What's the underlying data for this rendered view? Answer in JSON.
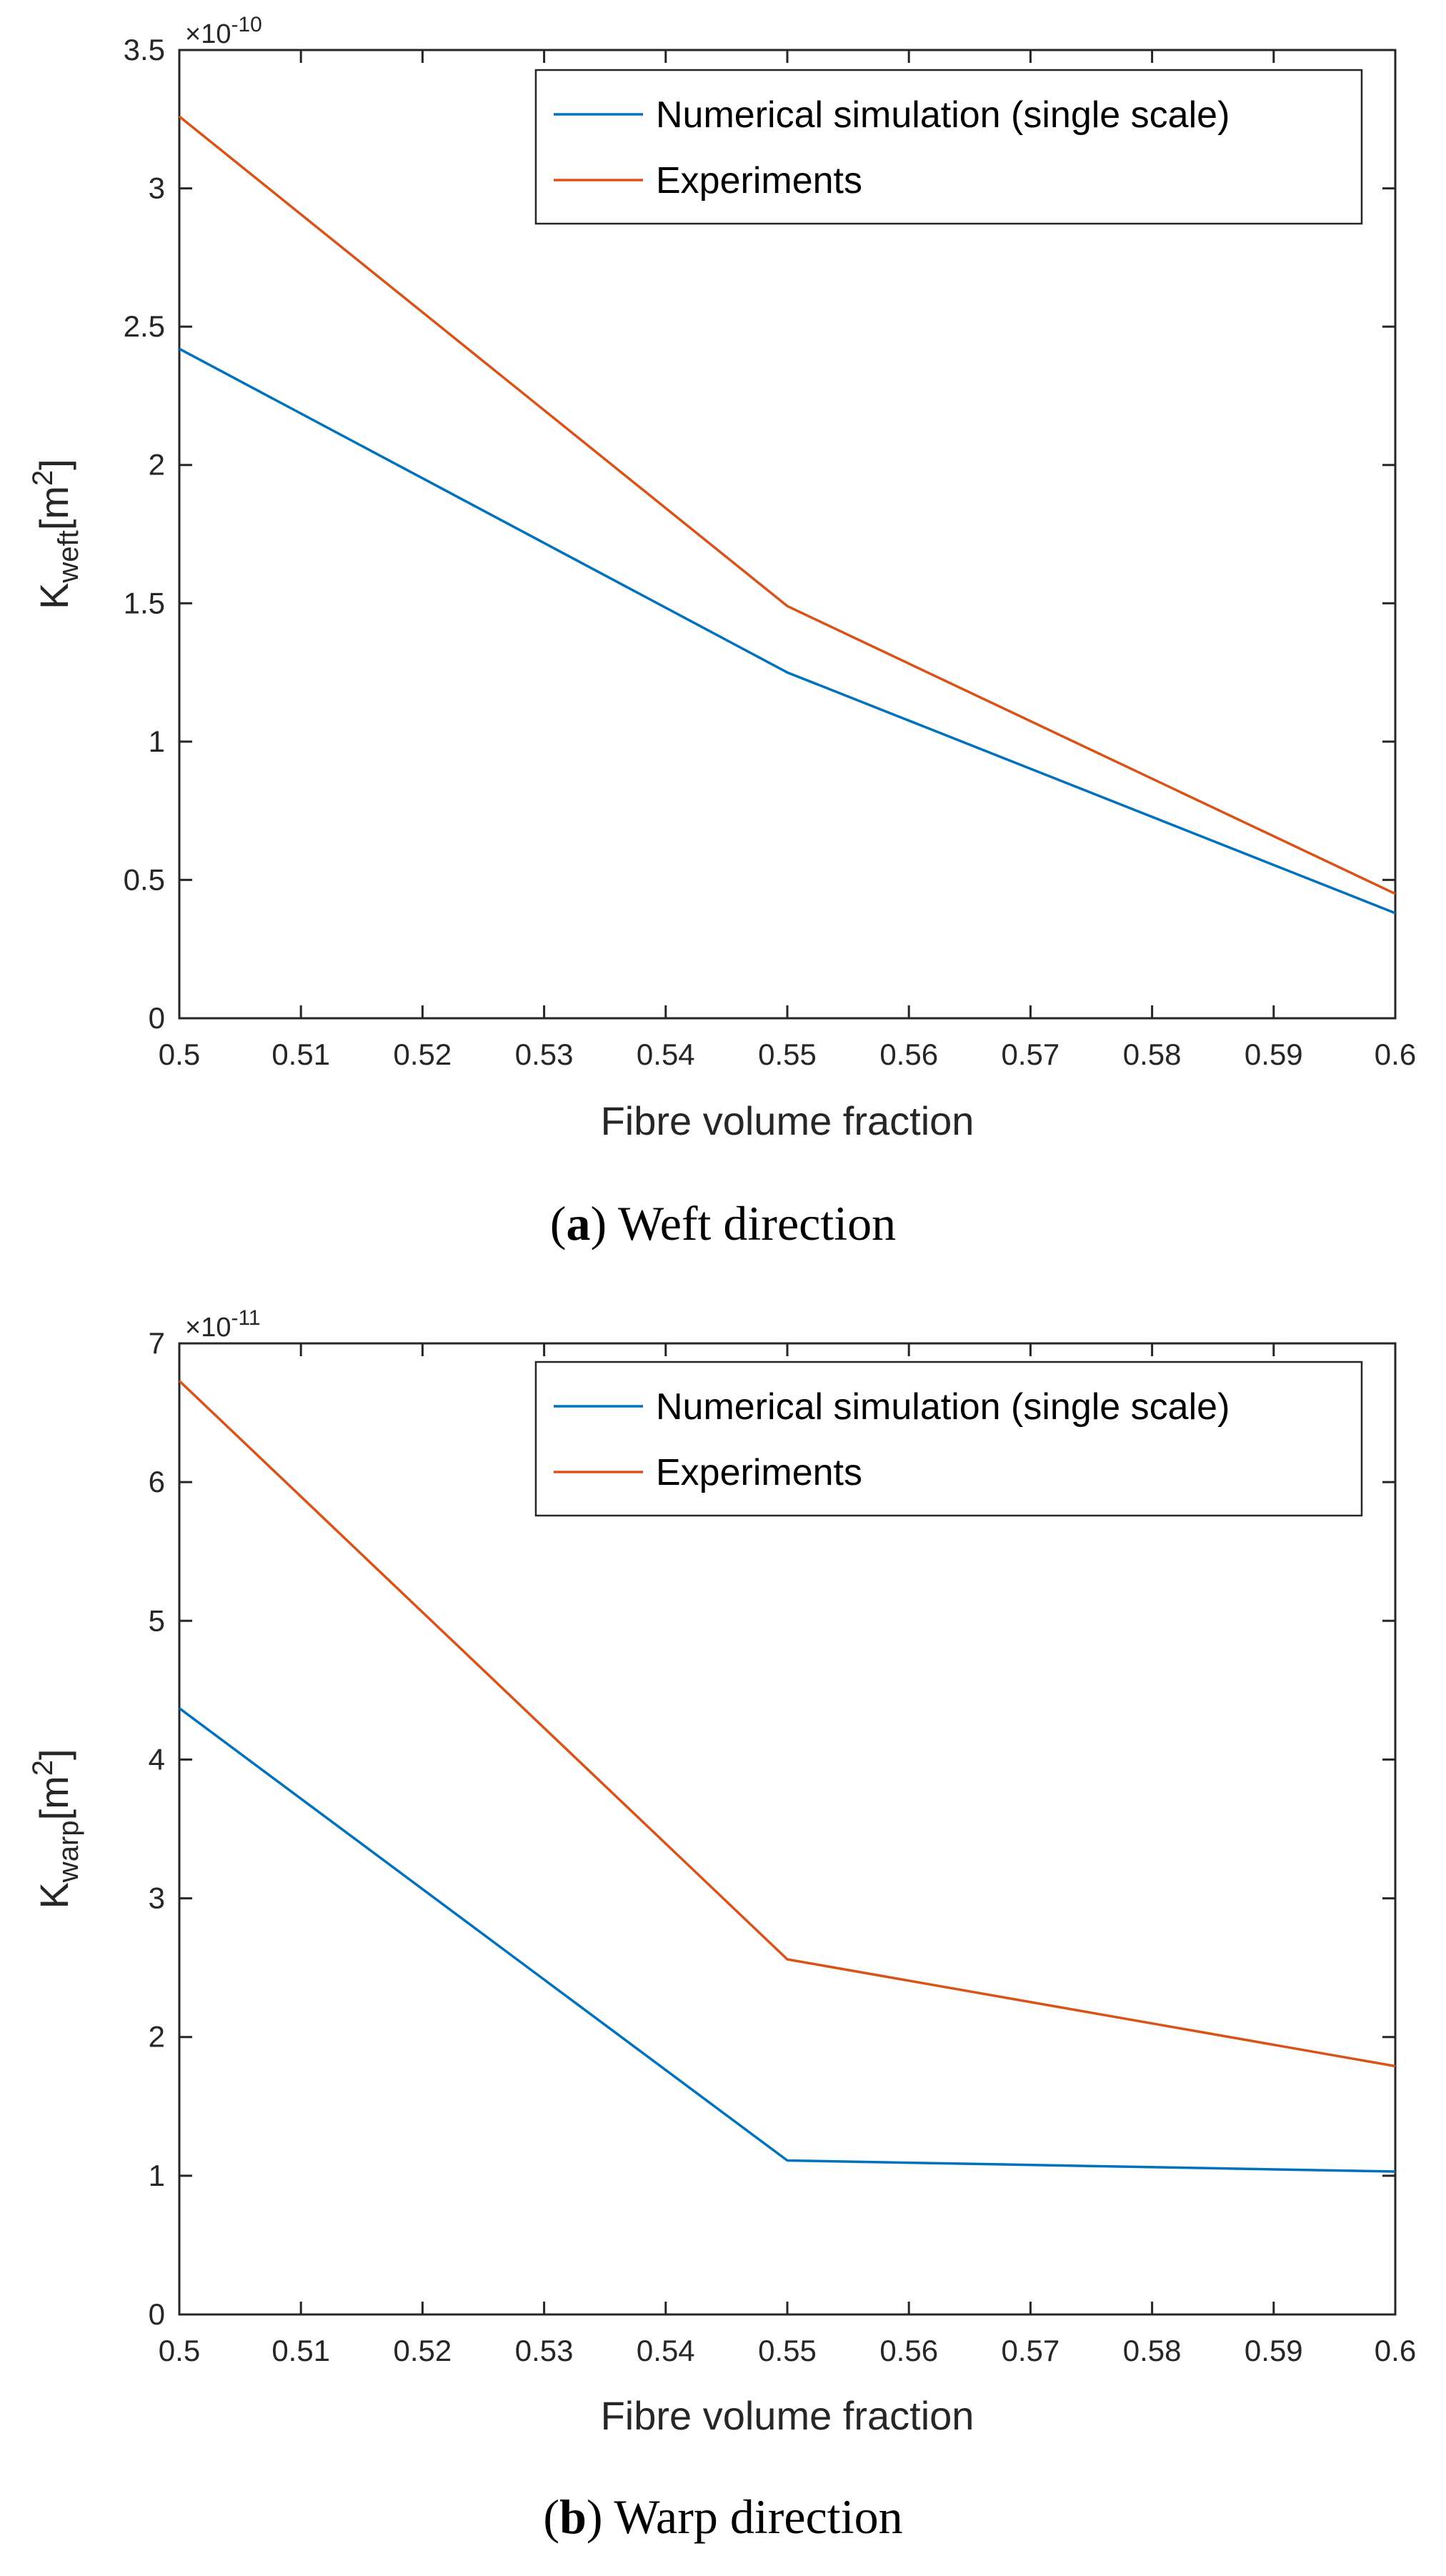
{
  "chart_data": [
    {
      "type": "line",
      "id": "a",
      "x": [
        0.5,
        0.55,
        0.6
      ],
      "series": [
        {
          "name": "Numerical simulation (single scale)",
          "color": "#0072BD",
          "values": [
            2.42,
            1.25,
            0.38
          ]
        },
        {
          "name": "Experiments",
          "color": "#D95319",
          "values": [
            3.26,
            1.49,
            0.45
          ]
        }
      ],
      "xlabel": "Fibre volume fraction",
      "ylabel_main": "K",
      "ylabel_sub": "weft",
      "ylabel_unit_prefix": "[m",
      "ylabel_unit_sup": "2",
      "ylabel_unit_suffix": "]",
      "exponent_base": "×10",
      "exponent_power": "-10",
      "xlim": [
        0.5,
        0.6
      ],
      "ylim": [
        0,
        3.5
      ],
      "xticks": [
        0.5,
        0.51,
        0.52,
        0.53,
        0.54,
        0.55,
        0.56,
        0.57,
        0.58,
        0.59,
        0.6
      ],
      "yticks": [
        0,
        0.5,
        1,
        1.5,
        2,
        2.5,
        3,
        3.5
      ],
      "legend": "top-right",
      "grid": false,
      "caption_bold": "a",
      "caption_text": " Weft direction"
    },
    {
      "type": "line",
      "id": "b",
      "x": [
        0.5,
        0.55,
        0.6
      ],
      "series": [
        {
          "name": "Numerical simulation (single scale)",
          "color": "#0072BD",
          "values": [
            4.37,
            1.11,
            1.03
          ]
        },
        {
          "name": "Experiments",
          "color": "#D95319",
          "values": [
            6.73,
            2.56,
            1.79
          ]
        }
      ],
      "xlabel": "Fibre volume fraction",
      "ylabel_main": "K",
      "ylabel_sub": "warp",
      "ylabel_unit_prefix": "[m",
      "ylabel_unit_sup": "2",
      "ylabel_unit_suffix": "]",
      "exponent_base": "×10",
      "exponent_power": "-11",
      "xlim": [
        0.5,
        0.6
      ],
      "ylim": [
        0,
        7
      ],
      "xticks": [
        0.5,
        0.51,
        0.52,
        0.53,
        0.54,
        0.55,
        0.56,
        0.57,
        0.58,
        0.59,
        0.6
      ],
      "yticks": [
        0,
        1,
        2,
        3,
        4,
        5,
        6,
        7
      ],
      "legend": "top-right",
      "grid": false,
      "caption_bold": "b",
      "caption_text": " Warp direction"
    }
  ]
}
